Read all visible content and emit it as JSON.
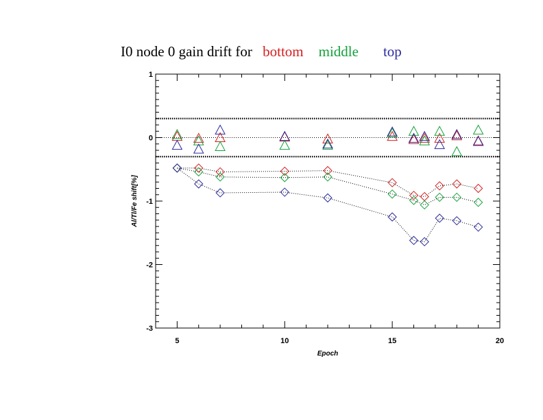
{
  "chart_data": {
    "type": "scatter",
    "title": {
      "prefix": "I0 node 0 gain drift for",
      "series_words": [
        {
          "text": "bottom",
          "color": "#d42020"
        },
        {
          "text": "middle",
          "color": "#13a13a"
        },
        {
          "text": "top",
          "color": "#2b2b9f"
        }
      ]
    },
    "xlabel": "Epoch",
    "ylabel": "Al/Tl/Fe shift[%]",
    "xlim": [
      4,
      20
    ],
    "ylim": [
      -3,
      1
    ],
    "xticks": [
      5,
      10,
      15,
      20
    ],
    "yticks": [
      1,
      0,
      -1,
      -2,
      -3
    ],
    "x_minor_step": 1,
    "y_minor_step": 0.1,
    "reference_lines": [
      {
        "y": 0.3,
        "style": "dotted",
        "weight": "heavy"
      },
      {
        "y": 0,
        "style": "dotted",
        "weight": "light"
      },
      {
        "y": -0.3,
        "style": "dotted",
        "weight": "heavy"
      }
    ],
    "triangle_series": [
      {
        "name": "bottom",
        "color": "#d42020",
        "x": [
          5,
          6,
          7,
          10,
          12,
          15,
          16,
          16.5,
          17.2,
          18,
          19
        ],
        "y": [
          0.02,
          -0.01,
          0.0,
          0.01,
          -0.02,
          0.02,
          -0.03,
          -0.01,
          -0.01,
          0.03,
          -0.05
        ]
      },
      {
        "name": "middle",
        "color": "#13a13a",
        "x": [
          5,
          6,
          7,
          10,
          12,
          15,
          16,
          16.5,
          17.2,
          18,
          19
        ],
        "y": [
          0.05,
          -0.05,
          -0.14,
          -0.12,
          -0.12,
          0.07,
          0.1,
          -0.05,
          0.1,
          -0.22,
          0.12
        ]
      },
      {
        "name": "top",
        "color": "#2b2b9f",
        "x": [
          5,
          6,
          7,
          10,
          12,
          15,
          16,
          16.5,
          17.2,
          18,
          19
        ],
        "y": [
          -0.12,
          -0.18,
          0.12,
          0.02,
          -0.1,
          0.09,
          -0.01,
          0.02,
          -0.11,
          0.05,
          -0.06
        ]
      }
    ],
    "diamond_series": [
      {
        "name": "bottom",
        "color": "#d42020",
        "x": [
          5,
          6,
          7,
          10,
          12,
          15,
          16,
          16.5,
          17.2,
          18,
          19
        ],
        "y": [
          -0.48,
          -0.48,
          -0.54,
          -0.53,
          -0.52,
          -0.71,
          -0.91,
          -0.93,
          -0.76,
          -0.73,
          -0.8
        ]
      },
      {
        "name": "middle",
        "color": "#13a13a",
        "x": [
          5,
          6,
          7,
          10,
          12,
          15,
          16,
          16.5,
          17.2,
          18,
          19
        ],
        "y": [
          -0.48,
          -0.54,
          -0.62,
          -0.63,
          -0.62,
          -0.89,
          -0.99,
          -1.06,
          -0.94,
          -0.94,
          -1.02
        ]
      },
      {
        "name": "top",
        "color": "#2b2b9f",
        "x": [
          5,
          6,
          7,
          10,
          12,
          15,
          16,
          16.5,
          17.2,
          18,
          19
        ],
        "y": [
          -0.48,
          -0.73,
          -0.87,
          -0.86,
          -0.95,
          -1.25,
          -1.62,
          -1.64,
          -1.27,
          -1.31,
          -1.41
        ]
      }
    ]
  }
}
